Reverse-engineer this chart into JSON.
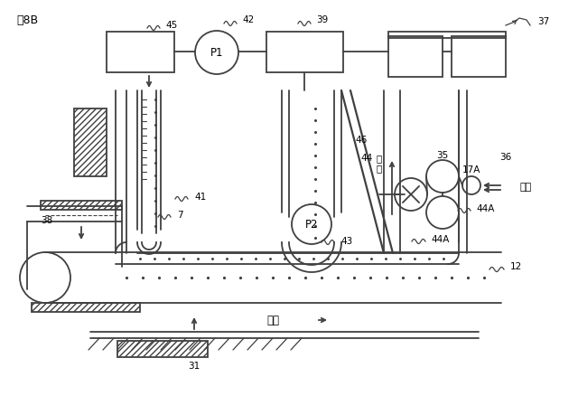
{
  "title": "図8B",
  "bg_color": "#ffffff",
  "line_color": "#404040",
  "label_37": "37",
  "label_39": "39",
  "label_42": "42",
  "label_45": "45",
  "label_46": "46",
  "label_44": "44",
  "label_35": "35",
  "label_17A": "17A",
  "label_36": "36",
  "label_41": "41",
  "label_7": "7",
  "label_38": "38",
  "label_43": "43",
  "label_44A": "44A",
  "label_12": "12",
  "label_P1": "P1",
  "label_P2": "P2",
  "label_suction": "吸\n引",
  "label_air": "空気",
  "label_pressure": "圧送",
  "label_31": "31"
}
